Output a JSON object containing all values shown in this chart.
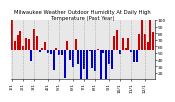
{
  "title": "Milwaukee Weather Outdoor Humidity At Daily High Temperature (Past Year)",
  "background_color": "#ffffff",
  "plot_bg_color": "#e8e8e8",
  "bar_color_high": "#cc0000",
  "bar_color_low": "#0000cc",
  "grid_color": "#999999",
  "title_fontsize": 3.8,
  "tick_fontsize": 3.2,
  "n_points": 52,
  "mean_humidity": 55,
  "amplitude": 22,
  "noise_scale": 18,
  "seasonal_period": 52,
  "ylim": [
    10,
    100
  ],
  "yticks": [
    20,
    30,
    40,
    50,
    60,
    70,
    80,
    90,
    100
  ],
  "ytick_labels": [
    "20",
    "30",
    "40",
    "50",
    "60",
    "70",
    "80",
    "90",
    "100"
  ]
}
